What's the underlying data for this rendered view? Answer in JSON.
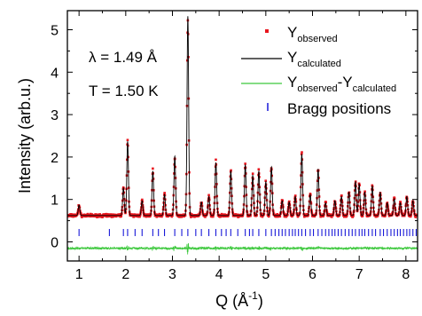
{
  "chart_data": {
    "type": "line",
    "xlabel": "Q (Å",
    "xlabel_exp": "-1",
    "xlabel_close": ")",
    "ylabel": "Intensity (arb.u.)",
    "xlim": [
      0.75,
      8.25
    ],
    "ylim": [
      -0.45,
      5.45
    ],
    "x_ticks": [
      1,
      2,
      3,
      4,
      5,
      6,
      7,
      8
    ],
    "y_ticks": [
      0,
      1,
      2,
      3,
      4,
      5
    ],
    "annotations": [
      {
        "text": "λ = 1.49 Å"
      },
      {
        "text": "T = 1.50 K"
      }
    ],
    "legend": {
      "position": "top-right",
      "entries": [
        {
          "base": "Y",
          "sub": "observed",
          "mid": "",
          "base2": "",
          "sub2": "",
          "style": "marker",
          "color": "#e8161e"
        },
        {
          "base": "Y",
          "sub": "calculated",
          "mid": "",
          "base2": "",
          "sub2": "",
          "style": "line",
          "color": "#000000"
        },
        {
          "base": "Y",
          "sub": "observed",
          "mid": "-",
          "base2": "Y",
          "sub2": "calculated",
          "style": "line",
          "color": "#3cc83c"
        },
        {
          "base": "Bragg positions",
          "sub": "",
          "mid": "",
          "base2": "",
          "sub2": "",
          "style": "tick",
          "color": "#1818d8"
        }
      ]
    },
    "background": 0.62,
    "peaks": [
      {
        "q": 1.0,
        "h": 0.25
      },
      {
        "q": 1.95,
        "h": 0.65
      },
      {
        "q": 2.04,
        "h": 1.75
      },
      {
        "q": 2.35,
        "h": 0.35
      },
      {
        "q": 2.58,
        "h": 1.05
      },
      {
        "q": 2.83,
        "h": 0.5
      },
      {
        "q": 3.05,
        "h": 1.4
      },
      {
        "q": 3.33,
        "h": 4.7
      },
      {
        "q": 3.62,
        "h": 0.32
      },
      {
        "q": 3.78,
        "h": 0.45
      },
      {
        "q": 3.93,
        "h": 1.25
      },
      {
        "q": 4.25,
        "h": 1.05
      },
      {
        "q": 4.56,
        "h": 1.2
      },
      {
        "q": 4.72,
        "h": 0.95
      },
      {
        "q": 4.85,
        "h": 1.05
      },
      {
        "q": 5.0,
        "h": 0.8
      },
      {
        "q": 5.12,
        "h": 1.15
      },
      {
        "q": 5.35,
        "h": 0.35
      },
      {
        "q": 5.5,
        "h": 0.32
      },
      {
        "q": 5.63,
        "h": 0.45
      },
      {
        "q": 5.77,
        "h": 1.45
      },
      {
        "q": 5.95,
        "h": 0.5
      },
      {
        "q": 6.12,
        "h": 1.1
      },
      {
        "q": 6.28,
        "h": 0.3
      },
      {
        "q": 6.48,
        "h": 0.35
      },
      {
        "q": 6.62,
        "h": 0.45
      },
      {
        "q": 6.78,
        "h": 0.55
      },
      {
        "q": 6.92,
        "h": 0.8
      },
      {
        "q": 7.0,
        "h": 0.75
      },
      {
        "q": 7.12,
        "h": 0.55
      },
      {
        "q": 7.28,
        "h": 0.7
      },
      {
        "q": 7.45,
        "h": 0.55
      },
      {
        "q": 7.6,
        "h": 0.3
      },
      {
        "q": 7.75,
        "h": 0.4
      },
      {
        "q": 7.88,
        "h": 0.3
      },
      {
        "q": 8.02,
        "h": 0.45
      },
      {
        "q": 8.15,
        "h": 0.35
      }
    ],
    "bragg_positions": [
      1.0,
      1.65,
      1.95,
      2.04,
      2.2,
      2.35,
      2.58,
      2.7,
      2.83,
      3.05,
      3.2,
      3.33,
      3.5,
      3.62,
      3.78,
      3.93,
      4.05,
      4.15,
      4.25,
      4.4,
      4.56,
      4.65,
      4.72,
      4.85,
      5.0,
      5.12,
      5.2,
      5.28,
      5.35,
      5.42,
      5.5,
      5.57,
      5.63,
      5.7,
      5.77,
      5.85,
      5.95,
      6.02,
      6.12,
      6.2,
      6.28,
      6.35,
      6.42,
      6.48,
      6.55,
      6.62,
      6.7,
      6.78,
      6.85,
      6.92,
      7.0,
      7.06,
      7.12,
      7.2,
      7.28,
      7.35,
      7.45,
      7.52,
      7.6,
      7.68,
      7.75,
      7.82,
      7.88,
      7.95,
      8.02,
      8.08,
      8.15,
      8.22
    ],
    "bragg_y": 0.22,
    "difference_offset": -0.15
  }
}
